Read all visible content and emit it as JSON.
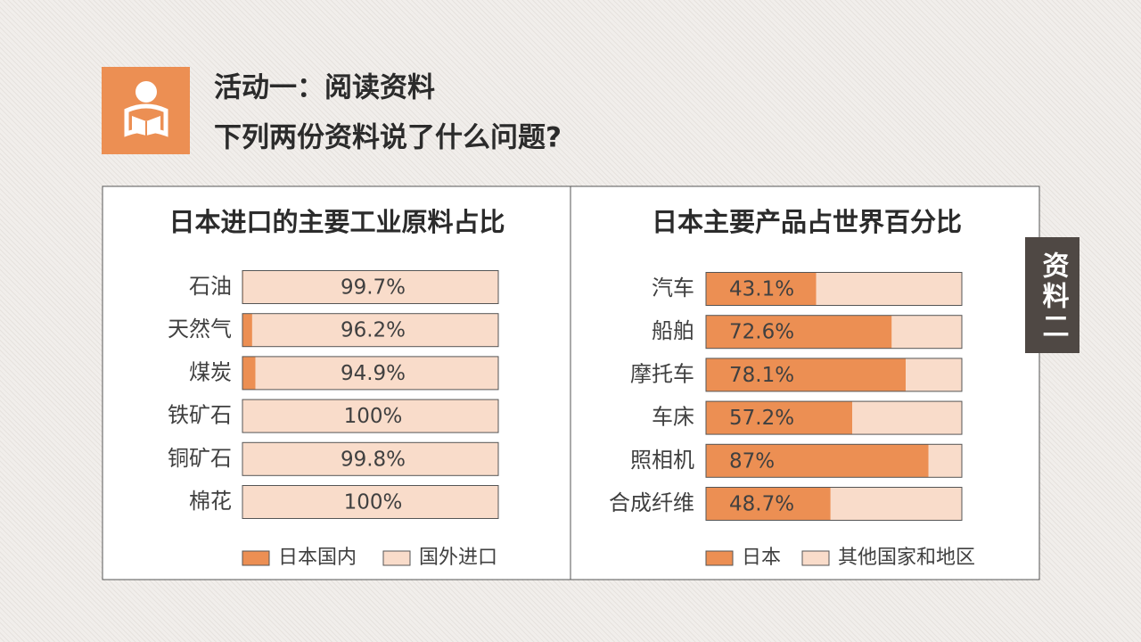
{
  "header": {
    "title": "活动一：阅读资料",
    "subtitle": "下列两份资料说了什么问题?"
  },
  "side_tab": "资料二",
  "chart_data": [
    {
      "type": "bar",
      "orientation": "horizontal",
      "stacked": true,
      "title": "日本进口的主要工业原料占比",
      "categories": [
        "石油",
        "天然气",
        "煤炭",
        "铁矿石",
        "铜矿石",
        "棉花"
      ],
      "xlim": [
        0,
        100
      ],
      "legend": "bottom",
      "series": [
        {
          "name": "日本国内",
          "color": "#ec8f53",
          "values": [
            0.3,
            3.8,
            5.1,
            0,
            0.2,
            0
          ]
        },
        {
          "name": "国外进口",
          "color": "#f9dcca",
          "values": [
            99.7,
            96.2,
            94.9,
            100,
            99.8,
            100
          ],
          "value_labels": [
            "99.7%",
            "96.2%",
            "94.9%",
            "100%",
            "99.8%",
            "100%"
          ]
        }
      ]
    },
    {
      "type": "bar",
      "orientation": "horizontal",
      "stacked": true,
      "title": "日本主要产品占世界百分比",
      "categories": [
        "汽车",
        "船舶",
        "摩托车",
        "车床",
        "照相机",
        "合成纤维"
      ],
      "xlim": [
        0,
        100
      ],
      "legend": "bottom",
      "series": [
        {
          "name": "日本",
          "color": "#ec8f53",
          "values": [
            43.1,
            72.6,
            78.1,
            57.2,
            87,
            48.7
          ],
          "value_labels": [
            "43.1%",
            "72.6%",
            "78.1%",
            "57.2%",
            "87%",
            "48.7%"
          ]
        },
        {
          "name": "其他国家和地区",
          "color": "#f9dcca",
          "values": [
            56.9,
            27.4,
            21.9,
            42.8,
            13,
            51.3
          ]
        }
      ]
    }
  ]
}
